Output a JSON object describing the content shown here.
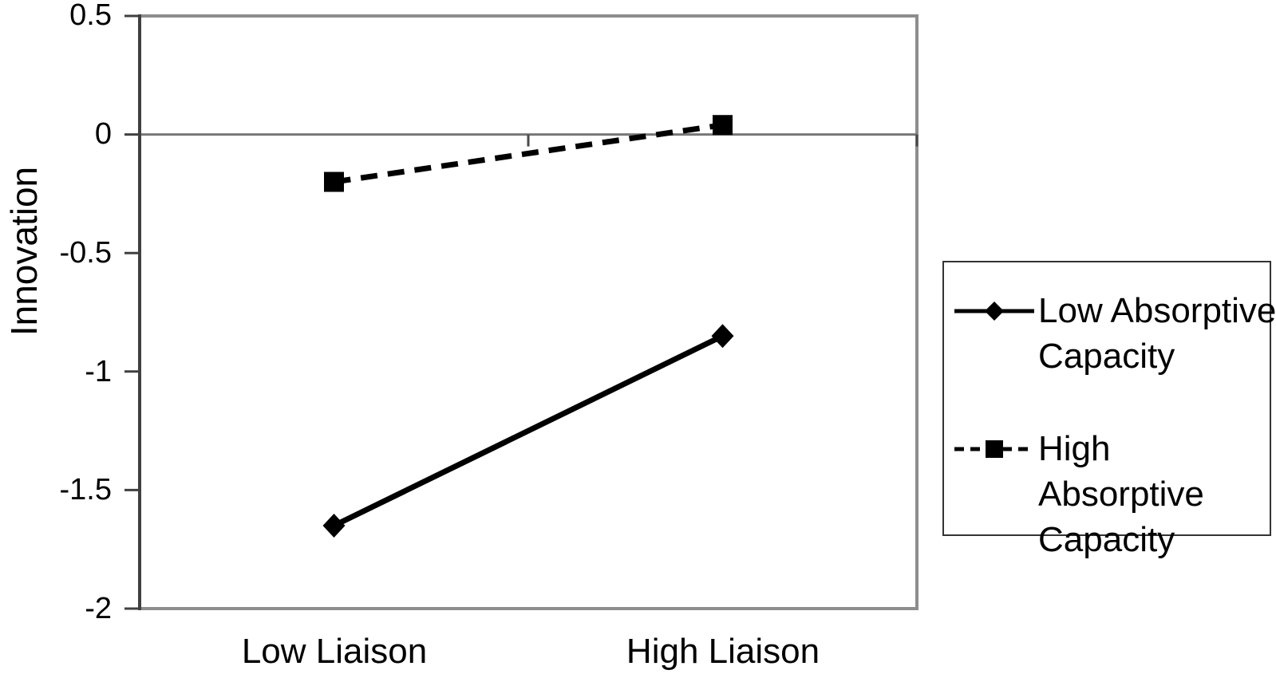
{
  "chart_data": {
    "type": "line",
    "title": "",
    "xlabel": "",
    "ylabel": "Innovation",
    "categories": [
      "Low Liaison",
      "High Liaison"
    ],
    "series": [
      {
        "name": "Low Absorptive Capacity",
        "values": [
          -1.65,
          -0.85
        ],
        "line_style": "solid",
        "marker": "diamond",
        "color": "#000000"
      },
      {
        "name": "High Absorptive Capacity",
        "values": [
          -0.2,
          0.04
        ],
        "line_style": "dashed",
        "marker": "square",
        "color": "#000000"
      }
    ],
    "ylim": [
      -2,
      0.5
    ],
    "yticks": [
      {
        "label": "0.5",
        "value": 0.5
      },
      {
        "label": "0",
        "value": 0
      },
      {
        "label": "-0.5",
        "value": -0.5
      },
      {
        "label": "-1",
        "value": -1
      },
      {
        "label": "-1.5",
        "value": -1.5
      },
      {
        "label": "-2",
        "value": -2
      }
    ],
    "grid": "horizontal gridline at 0 only, with category tick marks on the zero line",
    "legend_position": "right-outside"
  },
  "colors": {
    "series": "#000000",
    "plot_border": "#8d8d8d",
    "zero_line": "#777777",
    "axis_line": "#404040",
    "tick": "#4a4a4a",
    "legend_border": "#333333",
    "text": "#000000",
    "background": "#ffffff"
  }
}
